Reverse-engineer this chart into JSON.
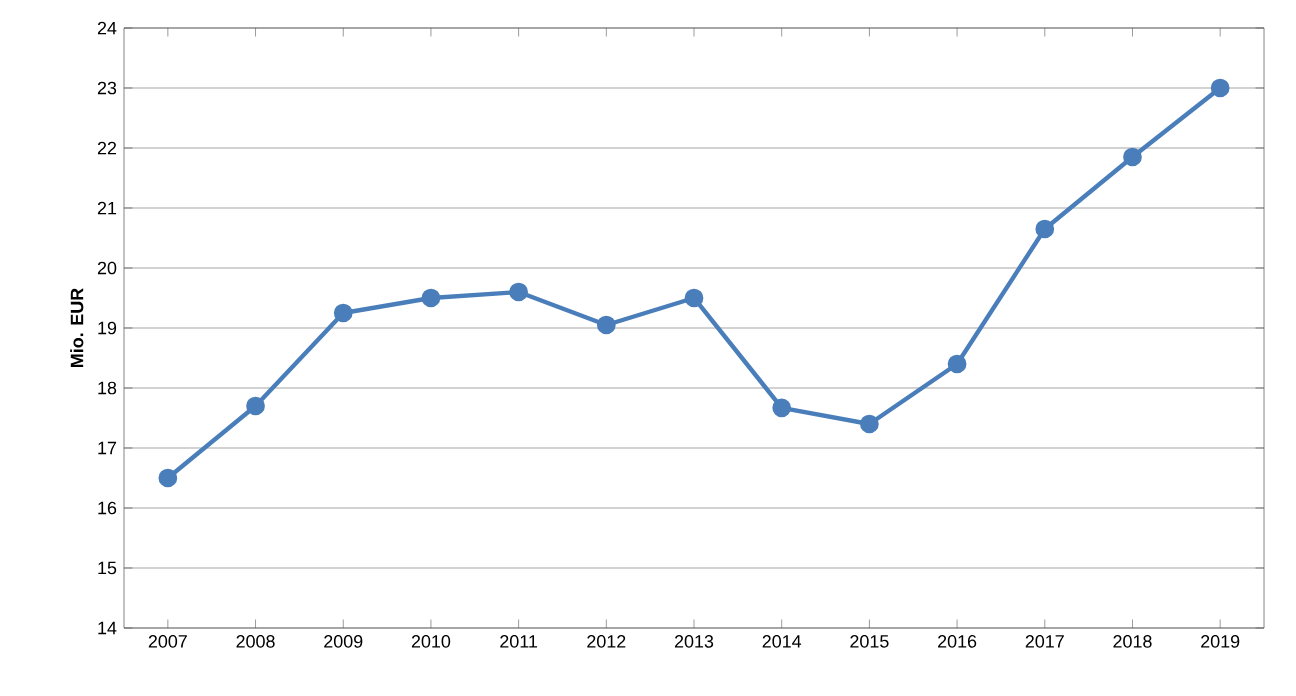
{
  "chart_data": {
    "type": "line",
    "ylabel": "Mio. EUR",
    "categories": [
      "2007",
      "2008",
      "2009",
      "2010",
      "2011",
      "2012",
      "2013",
      "2014",
      "2015",
      "2016",
      "2017",
      "2018",
      "2019"
    ],
    "series": [
      {
        "color": "#4a7ebb",
        "values": [
          16.5,
          17.7,
          19.25,
          19.5,
          19.6,
          19.05,
          19.5,
          17.67,
          17.4,
          18.4,
          20.65,
          21.85,
          23.0
        ]
      }
    ],
    "ylim": [
      14,
      24
    ],
    "yticks": [
      14,
      15,
      16,
      17,
      18,
      19,
      20,
      21,
      22,
      23,
      24
    ],
    "grid": "y",
    "marker": "circle",
    "line_style": "solid"
  }
}
